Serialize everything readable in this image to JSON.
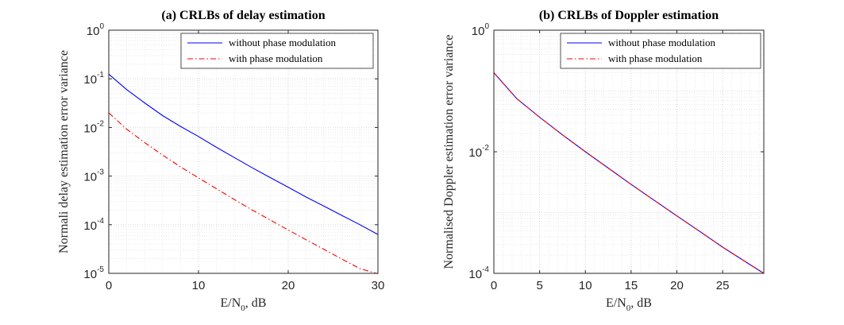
{
  "chart_data": [
    {
      "type": "line",
      "title": "(a) CRLBs of delay estimation",
      "xlabel": "E/N0, dB",
      "ylabel": "Normali delay estimation error variance",
      "xlim": [
        0,
        30
      ],
      "ylim": [
        1e-05,
        1
      ],
      "yscale": "log",
      "grid": true,
      "legend_position": "top-right",
      "xticks": [
        "0",
        "10",
        "20",
        "30"
      ],
      "yticks": [
        {
          "base": "10",
          "exp": "-5"
        },
        {
          "base": "10",
          "exp": "-4"
        },
        {
          "base": "10",
          "exp": "-3"
        },
        {
          "base": "10",
          "exp": "-2"
        },
        {
          "base": "10",
          "exp": "-1"
        },
        {
          "base": "10",
          "exp": "0"
        }
      ],
      "series": [
        {
          "name": "without phase modulation",
          "color": "#0000ff",
          "dash": "solid",
          "x": [
            0,
            2,
            4,
            6,
            8,
            10,
            12,
            14,
            16,
            18,
            20,
            22,
            24,
            26,
            28,
            30
          ],
          "y": [
            0.125,
            0.06,
            0.032,
            0.0175,
            0.0105,
            0.0065,
            0.0039,
            0.0024,
            0.00148,
            0.00093,
            0.00059,
            0.00037,
            0.00024,
            0.000155,
            0.0001,
            6.3e-05
          ]
        },
        {
          "name": "with phase modulation",
          "color": "#ff0000",
          "dash": "dashdot",
          "x": [
            0,
            2,
            4,
            6,
            8,
            10,
            12,
            14,
            16,
            18,
            20,
            22,
            24,
            26,
            28,
            30
          ],
          "y": [
            0.02,
            0.0092,
            0.0049,
            0.0027,
            0.00155,
            0.00092,
            0.00055,
            0.00033,
            0.0002,
            0.000125,
            7.8e-05,
            4.9e-05,
            3.1e-05,
            1.95e-05,
            1.25e-05,
            9.8e-06
          ]
        }
      ]
    },
    {
      "type": "line",
      "title": "(b) CRLBs of Doppler estimation",
      "xlabel": "E/N0, dB",
      "ylabel": "Normalised Doppler estimation error variance",
      "xlim": [
        0,
        29.5
      ],
      "ylim": [
        0.0001,
        1
      ],
      "yscale": "log",
      "grid": true,
      "legend_position": "top-right",
      "xticks": [
        "0",
        "5",
        "10",
        "15",
        "20",
        "25"
      ],
      "yticks": [
        {
          "base": "10",
          "exp": "-4"
        },
        {
          "base": "10",
          "exp": "-2"
        },
        {
          "base": "10",
          "exp": "0"
        }
      ],
      "series": [
        {
          "name": "without phase modulation",
          "color": "#0000ff",
          "dash": "solid",
          "x": [
            0,
            2.5,
            5,
            7.5,
            10,
            12.5,
            15,
            17.5,
            20,
            22.5,
            25,
            27.5,
            29.5
          ],
          "y": [
            0.2,
            0.075,
            0.037,
            0.019,
            0.01,
            0.0054,
            0.0029,
            0.0016,
            0.00088,
            0.00049,
            0.00027,
            0.000155,
            0.0001
          ]
        },
        {
          "name": "with phase modulation",
          "color": "#ff0000",
          "dash": "dashdot",
          "x": [
            0,
            2.5,
            5,
            7.5,
            10,
            12.5,
            15,
            17.5,
            20,
            22.5,
            25,
            27.5,
            29.5
          ],
          "y": [
            0.2,
            0.075,
            0.037,
            0.019,
            0.01,
            0.0054,
            0.0029,
            0.0016,
            0.00088,
            0.00049,
            0.00027,
            0.000155,
            0.0001
          ]
        }
      ]
    }
  ]
}
